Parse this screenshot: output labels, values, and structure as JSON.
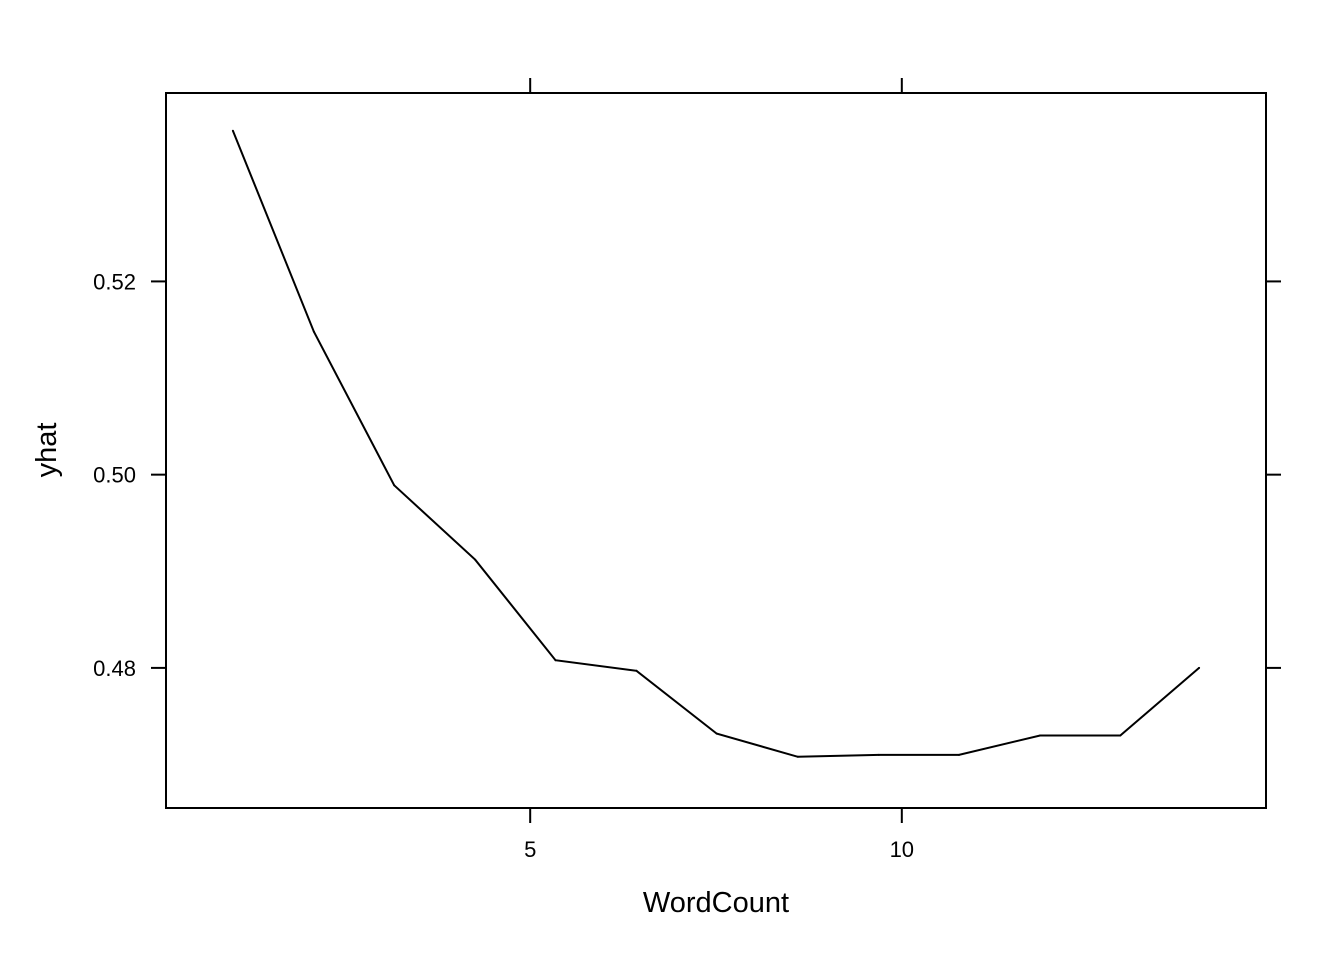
{
  "chart_data": {
    "type": "line",
    "title": "",
    "xlabel": "WordCount",
    "ylabel": "yhat",
    "xlim": [
      0.1,
      14.9
    ],
    "ylim": [
      0.4655,
      0.5395
    ],
    "x_ticks": [
      5,
      10
    ],
    "x_tick_labels": [
      "5",
      "10"
    ],
    "y_ticks": [
      0.52,
      0.5,
      0.48
    ],
    "y_tick_labels": [
      "0.52",
      "0.50",
      "0.48"
    ],
    "grid": false,
    "legend": "none",
    "colors": {
      "line": "#000000",
      "frame": "#000000",
      "background": "#ffffff"
    },
    "series": [
      {
        "x": [
          1.0,
          2.09,
          3.17,
          4.26,
          5.34,
          6.43,
          7.51,
          8.6,
          9.69,
          10.77,
          11.86,
          12.94,
          14.0
        ],
        "y": [
          0.5356,
          0.5148,
          0.4989,
          0.4912,
          0.4808,
          0.4797,
          0.4732,
          0.4708,
          0.471,
          0.471,
          0.473,
          0.473,
          0.48
        ]
      }
    ]
  }
}
